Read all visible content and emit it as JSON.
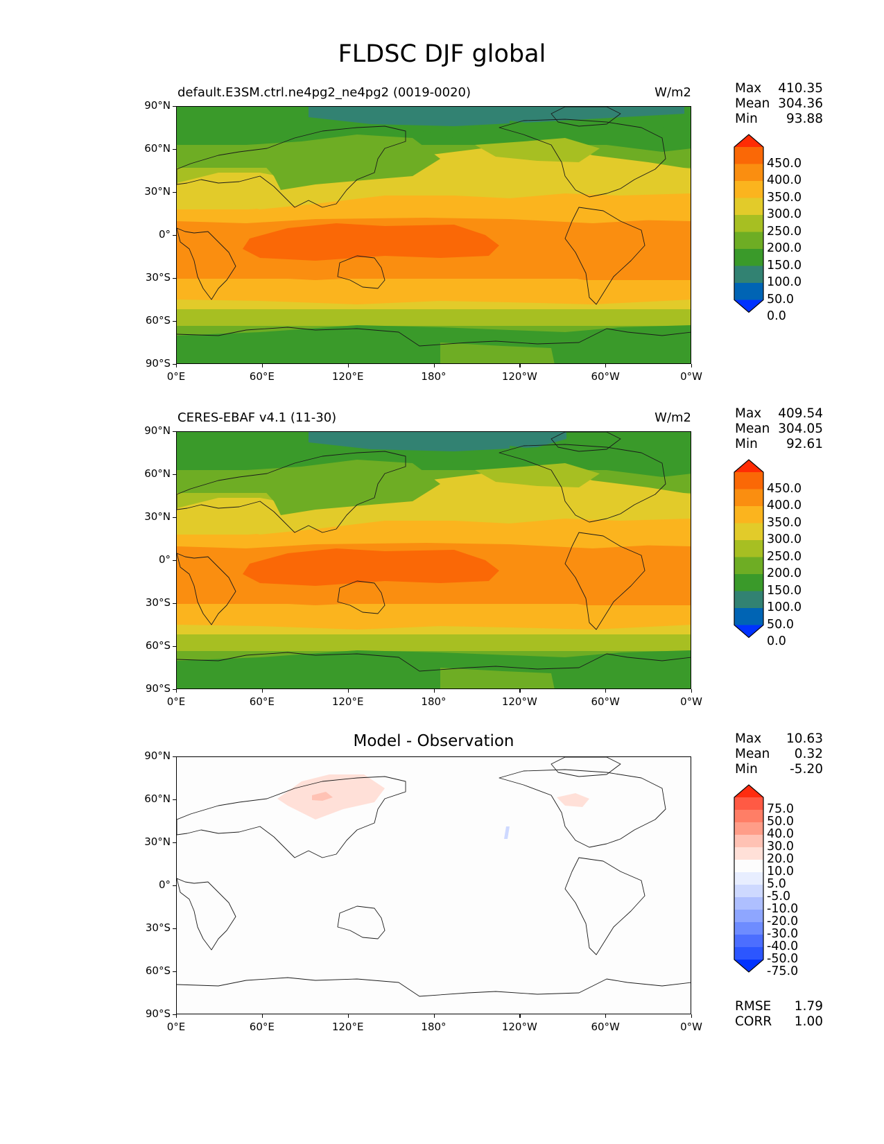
{
  "figure_title": "FLDSC DJF global",
  "lat_labels": [
    "90°N",
    "60°N",
    "30°N",
    "0°",
    "30°S",
    "60°S",
    "90°S"
  ],
  "lon_labels": [
    "0°E",
    "60°E",
    "120°E",
    "180°",
    "120°W",
    "60°W",
    "0°W"
  ],
  "panels": [
    {
      "caption": "default.E3SM.ctrl.ne4pg2_ne4pg2 (0019-0020)",
      "units": "W/m2",
      "center_title": "",
      "stats": [
        {
          "label": "Max",
          "value": "410.35"
        },
        {
          "label": "Mean",
          "value": "304.36"
        },
        {
          "label": "Min",
          "value": "93.88"
        }
      ],
      "colorbar_labels": [
        "450.0",
        "400.0",
        "350.0",
        "300.0",
        "250.0",
        "200.0",
        "150.0",
        "100.0",
        "50.0",
        "0.0"
      ]
    },
    {
      "caption": "CERES-EBAF v4.1 (11-30)",
      "units": "W/m2",
      "center_title": "",
      "stats": [
        {
          "label": "Max",
          "value": "409.54"
        },
        {
          "label": "Mean",
          "value": "304.05"
        },
        {
          "label": "Min",
          "value": "92.61"
        }
      ],
      "colorbar_labels": [
        "450.0",
        "400.0",
        "350.0",
        "300.0",
        "250.0",
        "200.0",
        "150.0",
        "100.0",
        "50.0",
        "0.0"
      ]
    },
    {
      "caption": "",
      "units": "",
      "center_title": "Model - Observation",
      "stats": [
        {
          "label": "Max",
          "value": "10.63"
        },
        {
          "label": "Mean",
          "value": "0.32"
        },
        {
          "label": "Min",
          "value": "-5.20"
        }
      ],
      "colorbar_labels": [
        "75.0",
        "50.0",
        "40.0",
        "30.0",
        "20.0",
        "10.0",
        "5.0",
        "-5.0",
        "-10.0",
        "-20.0",
        "-30.0",
        "-40.0",
        "-50.0",
        "-75.0"
      ],
      "metrics": [
        {
          "label": "RMSE",
          "value": "1.79"
        },
        {
          "label": "CORR",
          "value": "1.00"
        }
      ]
    }
  ],
  "colors": {
    "field_levels": [
      "#0032ff",
      "#0064b4",
      "#328272",
      "#3a9a2a",
      "#6ead24",
      "#a7bf22",
      "#e2cb2a",
      "#fbb41e",
      "#fa8e10",
      "#fa6806",
      "#ff2c04"
    ],
    "diff_levels": [
      "#0032ff",
      "#2c56ff",
      "#4c6eff",
      "#6e8cff",
      "#8ea6ff",
      "#aebfff",
      "#ced9ff",
      "#e8eeff",
      "#fdfdfd",
      "#ffe0d8",
      "#ffc2b4",
      "#ff9d88",
      "#ff7e66",
      "#ff5a44",
      "#ff2c10"
    ]
  }
}
